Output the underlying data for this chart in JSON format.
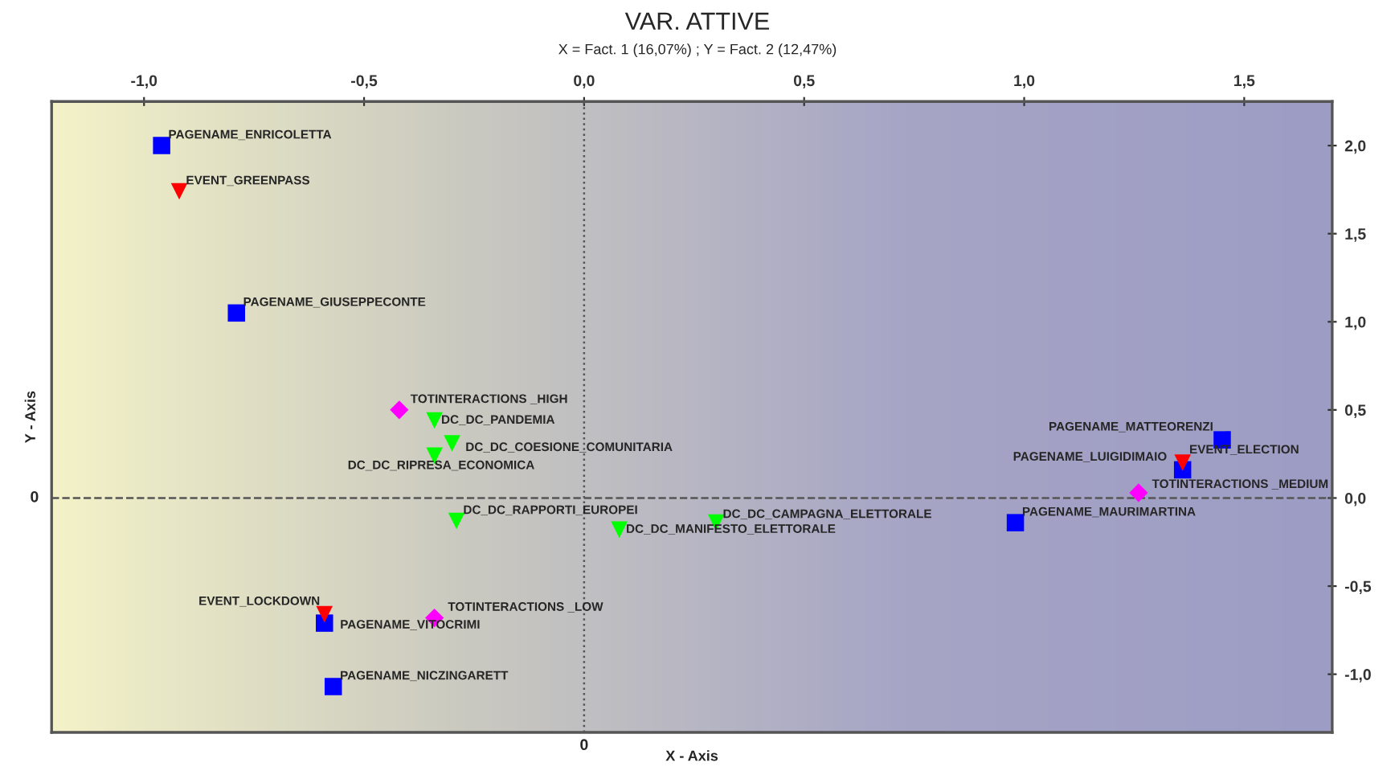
{
  "chart_data": {
    "type": "scatter",
    "title": "VAR. ATTIVE",
    "subtitle": "X = Fact. 1 (16,07%) ; Y = Fact. 2 (12,47%)",
    "xlabel": "X - Axis",
    "ylabel": "Y - Axis",
    "xlim": [
      -1.21,
      1.7
    ],
    "ylim": [
      -1.33,
      2.25
    ],
    "xticks": [
      {
        "value": -1.0,
        "label": "-1,0"
      },
      {
        "value": -0.5,
        "label": "-0,5"
      },
      {
        "value": 0.0,
        "label": "0,0"
      },
      {
        "value": 0.5,
        "label": "0,5"
      },
      {
        "value": 1.0,
        "label": "1,0"
      },
      {
        "value": 1.5,
        "label": "1,5"
      }
    ],
    "yticks": [
      {
        "value": -1.0,
        "label": "-1,0"
      },
      {
        "value": -0.5,
        "label": "-0,5"
      },
      {
        "value": 0.0,
        "label": "0,0"
      },
      {
        "value": 0.5,
        "label": "0,5"
      },
      {
        "value": 1.0,
        "label": "1,0"
      },
      {
        "value": 1.5,
        "label": "1,5"
      },
      {
        "value": 2.0,
        "label": "2,0"
      }
    ],
    "grid": false,
    "legend": false,
    "series": [
      {
        "color": "#0000ff",
        "marker": "square",
        "x": [
          -0.96,
          -0.79,
          -0.59,
          -0.57,
          1.45,
          1.36,
          0.98
        ],
        "values": [
          2.0,
          1.05,
          -0.71,
          -1.07,
          0.33,
          0.16,
          -0.14
        ]
      },
      {
        "color": "#ff0000",
        "marker": "triangle",
        "x": [
          -0.92,
          -0.59,
          1.36
        ],
        "values": [
          1.74,
          -0.66,
          0.2
        ]
      },
      {
        "color": "#00ff00",
        "marker": "triangle",
        "x": [
          -0.34,
          -0.3,
          -0.34,
          -0.29,
          0.08,
          0.3
        ],
        "values": [
          0.44,
          0.31,
          0.24,
          -0.13,
          -0.18,
          -0.14
        ]
      },
      {
        "color": "#ff00ff",
        "marker": "diamond",
        "x": [
          -0.42,
          -0.34,
          1.26
        ],
        "values": [
          0.5,
          -0.68,
          0.03
        ]
      }
    ],
    "ref_lines": [
      {
        "axis": "x",
        "value": 0,
        "label": "0",
        "line_style": "dotted",
        "color": "#555555"
      },
      {
        "axis": "y",
        "value": 0,
        "label": "0",
        "line_style": "dashed",
        "color": "#555555"
      }
    ],
    "annotations": [
      {
        "text": "PAGENAME_ENRICOLETTA",
        "x": -0.96,
        "y": 2.0
      },
      {
        "text": "PAGENAME_GIUSEPPECONTE",
        "x": -0.79,
        "y": 1.05
      },
      {
        "text": "PAGENAME_VITOCRIMI",
        "x": -0.59,
        "y": -0.71
      },
      {
        "text": "PAGENAME_NICZINGARETT",
        "x": -0.57,
        "y": -1.07
      },
      {
        "text": "PAGENAME_MATTEORENZI",
        "x": 1.45,
        "y": 0.33
      },
      {
        "text": "PAGENAME_LUIGIDIMAIO",
        "x": 1.36,
        "y": 0.16
      },
      {
        "text": "PAGENAME_MAURIMARTINA",
        "x": 0.98,
        "y": -0.14
      },
      {
        "text": "EVENT_GREENPASS",
        "x": -0.92,
        "y": 1.74
      },
      {
        "text": "EVENT_LOCKDOWN",
        "x": -0.59,
        "y": -0.66
      },
      {
        "text": "EVENT_ELECTION",
        "x": 1.36,
        "y": 0.2
      },
      {
        "text": "DC_DC_PANDEMIA",
        "x": -0.34,
        "y": 0.44
      },
      {
        "text": "DC_DC_COESIONE_COMUNITARIA",
        "x": -0.3,
        "y": 0.31
      },
      {
        "text": "DC_DC_RIPRESA_ECONOMICA",
        "x": -0.34,
        "y": 0.24
      },
      {
        "text": "DC_DC_RAPPORTI_EUROPEI",
        "x": -0.29,
        "y": -0.13
      },
      {
        "text": "DC_DC_MANIFESTO_ELETTORALE",
        "x": 0.08,
        "y": -0.18
      },
      {
        "text": "DC_DC_CAMPAGNA_ELETTORALE",
        "x": 0.3,
        "y": -0.14
      },
      {
        "text": "TOTINTERACTIONS _HIGH",
        "x": -0.42,
        "y": 0.5
      },
      {
        "text": "TOTINTERACTIONS _LOW",
        "x": -0.34,
        "y": -0.68
      },
      {
        "text": "TOTINTERACTIONS _MEDIUM",
        "x": 1.26,
        "y": 0.03
      }
    ]
  }
}
